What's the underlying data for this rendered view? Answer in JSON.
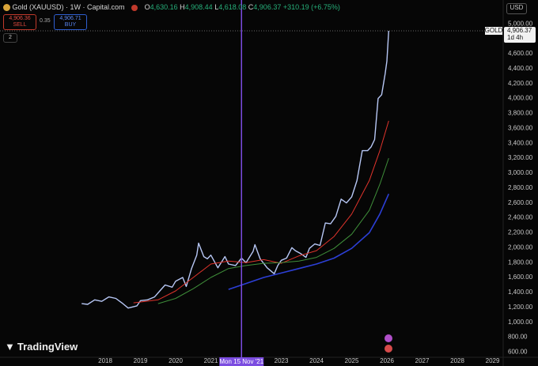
{
  "header": {
    "title": "Gold (XAUUSD) · 1W · Capital.com",
    "ohlc": [
      {
        "label": "O",
        "value": "4,630.16"
      },
      {
        "label": "H",
        "value": "4,908.44"
      },
      {
        "label": "L",
        "value": "4,618.08"
      },
      {
        "label": "C",
        "value": "4,906.37"
      }
    ],
    "change": "+310.19 (+6.75%)",
    "sell": {
      "price": "4,906.36",
      "label": "SELL"
    },
    "spread": "0.35",
    "buy": {
      "price": "4,906.71",
      "label": "BUY"
    },
    "indicators_count": "2",
    "currency": "USD",
    "logo": "TradingView"
  },
  "chart_data": {
    "type": "line",
    "grid": false,
    "log_scale": false,
    "xlim": [
      2015.01,
      2029.28
    ],
    "ylim": [
      530,
      5320
    ],
    "xticks": [
      2018,
      2019,
      2020,
      2021,
      2023,
      2024,
      2025,
      2026,
      2027,
      2028,
      2029
    ],
    "yticks": [
      {
        "value": 600,
        "label": "600.00"
      },
      {
        "value": 800,
        "label": "800.00"
      },
      {
        "value": 1000,
        "label": "1,000.00"
      },
      {
        "value": 1200,
        "label": "1,200.00"
      },
      {
        "value": 1400,
        "label": "1,400.00"
      },
      {
        "value": 1600,
        "label": "1,600.00"
      },
      {
        "value": 1800,
        "label": "1,800.00"
      },
      {
        "value": 2000,
        "label": "2,000.00"
      },
      {
        "value": 2200,
        "label": "2,200.00"
      },
      {
        "value": 2400,
        "label": "2,400.00"
      },
      {
        "value": 2600,
        "label": "2,600.00"
      },
      {
        "value": 2800,
        "label": "2,800.00"
      },
      {
        "value": 3000,
        "label": "3,000.00"
      },
      {
        "value": 3200,
        "label": "3,200.00"
      },
      {
        "value": 3400,
        "label": "3,400.00"
      },
      {
        "value": 3600,
        "label": "3,600.00"
      },
      {
        "value": 3800,
        "label": "3,800.00"
      },
      {
        "value": 4000,
        "label": "4,000.00"
      },
      {
        "value": 4200,
        "label": "4,200.00"
      },
      {
        "value": 4400,
        "label": "4,400.00"
      },
      {
        "value": 4600,
        "label": "4,600.00"
      },
      {
        "value": 4800,
        "label": "4,800.00"
      },
      {
        "value": 5000,
        "label": "5,000.00"
      }
    ],
    "series": [
      {
        "color": "#b7c7f5",
        "width": 1.4,
        "x": [
          2017.33,
          2017.5,
          2017.7,
          2017.9,
          2018.1,
          2018.3,
          2018.5,
          2018.65,
          2018.9,
          2019.0,
          2019.2,
          2019.4,
          2019.55,
          2019.7,
          2019.9,
          2020.0,
          2020.2,
          2020.3,
          2020.45,
          2020.6,
          2020.65,
          2020.8,
          2020.9,
          2021.0,
          2021.2,
          2021.4,
          2021.5,
          2021.7,
          2021.87,
          2022.0,
          2022.2,
          2022.25,
          2022.4,
          2022.6,
          2022.8,
          2022.9,
          2023.0,
          2023.15,
          2023.3,
          2023.4,
          2023.55,
          2023.7,
          2023.8,
          2023.95,
          2024.1,
          2024.25,
          2024.4,
          2024.55,
          2024.7,
          2024.85,
          2025.0,
          2025.15,
          2025.3,
          2025.45,
          2025.55,
          2025.65,
          2025.75,
          2025.85,
          2025.95,
          2026.0,
          2026.05
        ],
        "values": [
          1250,
          1240,
          1300,
          1280,
          1340,
          1320,
          1250,
          1190,
          1220,
          1290,
          1300,
          1340,
          1420,
          1500,
          1470,
          1550,
          1600,
          1480,
          1720,
          1900,
          2060,
          1880,
          1850,
          1900,
          1730,
          1880,
          1780,
          1760,
          1860,
          1800,
          1950,
          2040,
          1850,
          1730,
          1650,
          1760,
          1830,
          1860,
          2000,
          1960,
          1920,
          1870,
          1990,
          2050,
          2030,
          2330,
          2320,
          2420,
          2650,
          2600,
          2680,
          2900,
          3300,
          3300,
          3350,
          3450,
          4000,
          4050,
          4330,
          4500,
          4906.37
        ]
      },
      {
        "color": "#e0342c",
        "width": 1,
        "x": [
          2018.8,
          2019.5,
          2020.0,
          2020.5,
          2021.0,
          2021.5,
          2022.0,
          2022.5,
          2023.0,
          2023.5,
          2024.0,
          2024.5,
          2025.0,
          2025.5,
          2025.8,
          2026.05
        ],
        "values": [
          1260,
          1300,
          1420,
          1600,
          1780,
          1820,
          1800,
          1840,
          1790,
          1890,
          1960,
          2150,
          2450,
          2900,
          3300,
          3700
        ]
      },
      {
        "color": "#3f8f3a",
        "width": 1,
        "x": [
          2019.5,
          2020.0,
          2020.5,
          2021.0,
          2021.5,
          2022.0,
          2022.5,
          2023.0,
          2023.5,
          2024.0,
          2024.5,
          2025.0,
          2025.5,
          2025.8,
          2026.05
        ],
        "values": [
          1250,
          1320,
          1450,
          1600,
          1720,
          1760,
          1790,
          1800,
          1820,
          1870,
          1990,
          2180,
          2500,
          2850,
          3200
        ]
      },
      {
        "color": "#2c3fd6",
        "width": 1.6,
        "x": [
          2021.5,
          2022.0,
          2022.5,
          2023.0,
          2023.5,
          2024.0,
          2024.5,
          2025.0,
          2025.5,
          2025.8,
          2026.05
        ],
        "values": [
          1440,
          1520,
          1600,
          1660,
          1720,
          1780,
          1860,
          1990,
          2200,
          2450,
          2720
        ]
      }
    ],
    "last_price": {
      "name": "GOLD",
      "value": 4906.37,
      "value_label": "4,906.37",
      "countdown": "1d 4h"
    },
    "crosshair": {
      "x": 2021.87,
      "label": "Mon 15 Nov '21",
      "color": "#7b4ce0"
    }
  }
}
